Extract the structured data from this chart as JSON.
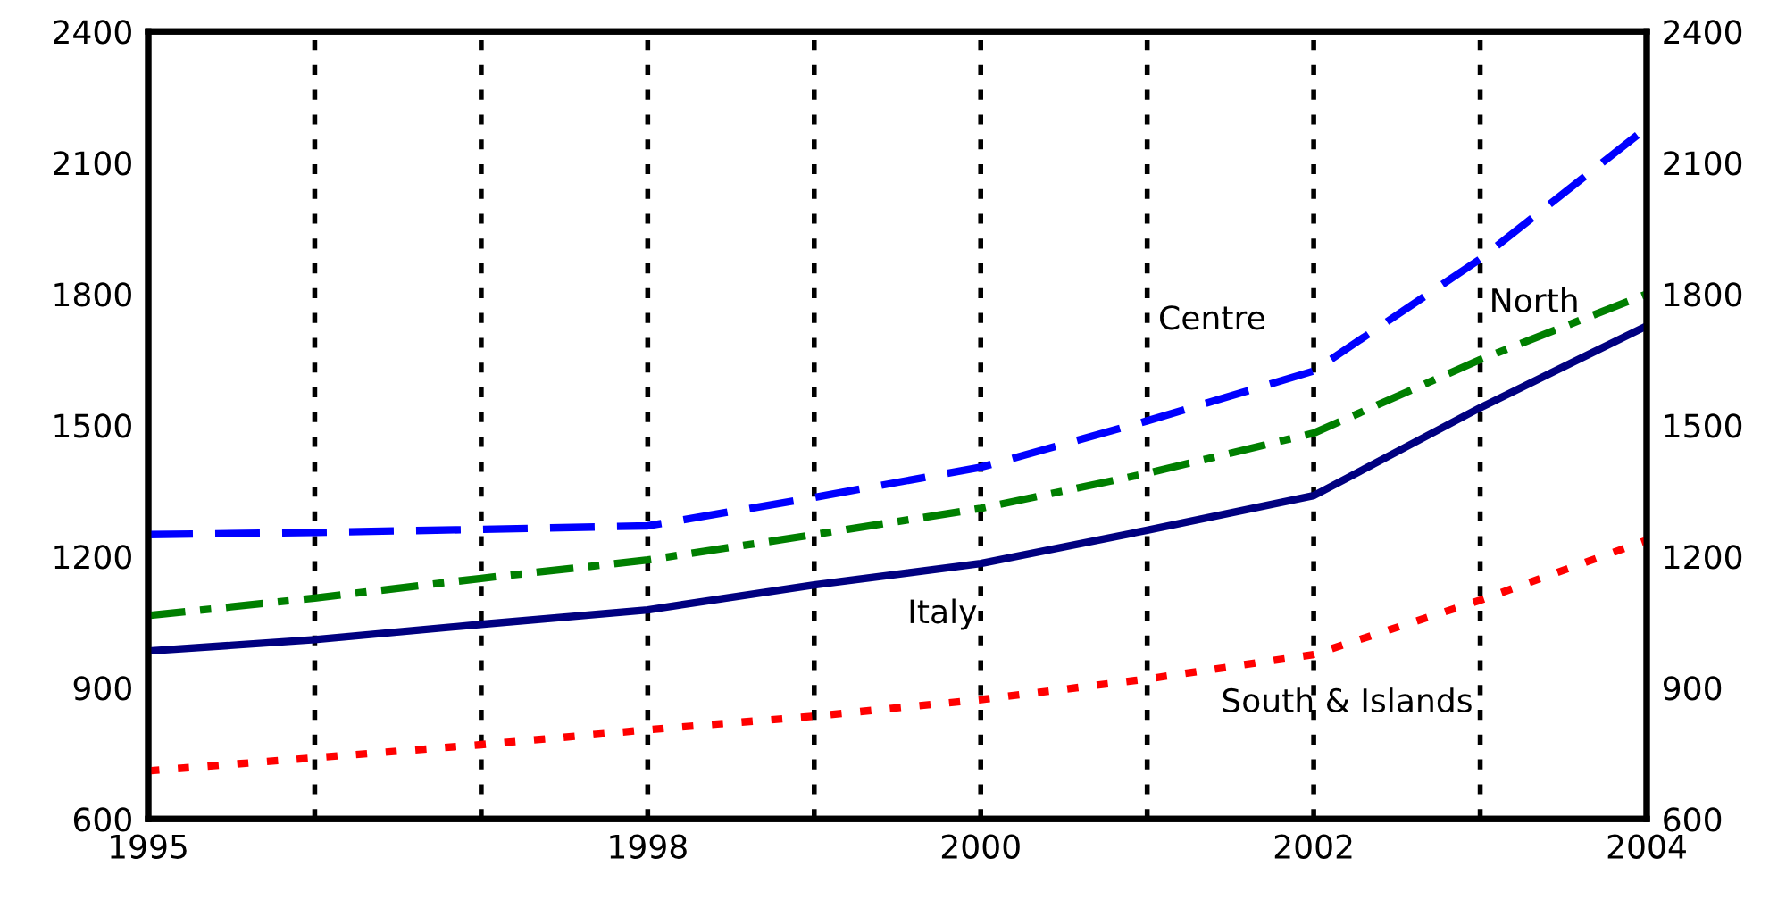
{
  "chart_data": {
    "type": "line",
    "x": [
      1995,
      1996,
      1997,
      1998,
      1999,
      2000,
      2001,
      2002,
      2003,
      2004
    ],
    "series": [
      {
        "name": "Centre",
        "color": "#0000ff",
        "line_style": "dashed",
        "values": [
          1250,
          1255,
          1262,
          1270,
          1335,
          1404,
          1510,
          1624,
          1880,
          2180
        ]
      },
      {
        "name": "North",
        "color": "#007f00",
        "line_style": "dashdot",
        "values": [
          1065,
          1105,
          1150,
          1192,
          1250,
          1310,
          1390,
          1482,
          1650,
          1800
        ]
      },
      {
        "name": "Italy",
        "color": "#000080",
        "line_style": "solid",
        "values": [
          984,
          1010,
          1045,
          1078,
          1135,
          1184,
          1260,
          1339,
          1540,
          1727
        ]
      },
      {
        "name": "South & Islands",
        "color": "#ff0000",
        "line_style": "dotted",
        "values": [
          710,
          740,
          770,
          804,
          835,
          873,
          920,
          976,
          1100,
          1237
        ]
      }
    ],
    "xlim": [
      1995,
      2004
    ],
    "xticks": [
      1995,
      {
        "value": 1996,
        "label": null
      },
      {
        "value": 1997,
        "label": null
      },
      1998,
      {
        "value": 1999,
        "label": null
      },
      2000,
      {
        "value": 2001,
        "label": null
      },
      2002,
      {
        "value": 2003,
        "label": null
      },
      2004
    ],
    "ylim": [
      600,
      2400
    ],
    "yticks": [
      600,
      900,
      1200,
      1500,
      1800,
      2100,
      2400
    ],
    "y2lim": [
      600,
      2400
    ],
    "y2ticks": [
      600,
      900,
      1200,
      1500,
      1800,
      2100,
      2400
    ],
    "grid": "x",
    "legend": false
  }
}
